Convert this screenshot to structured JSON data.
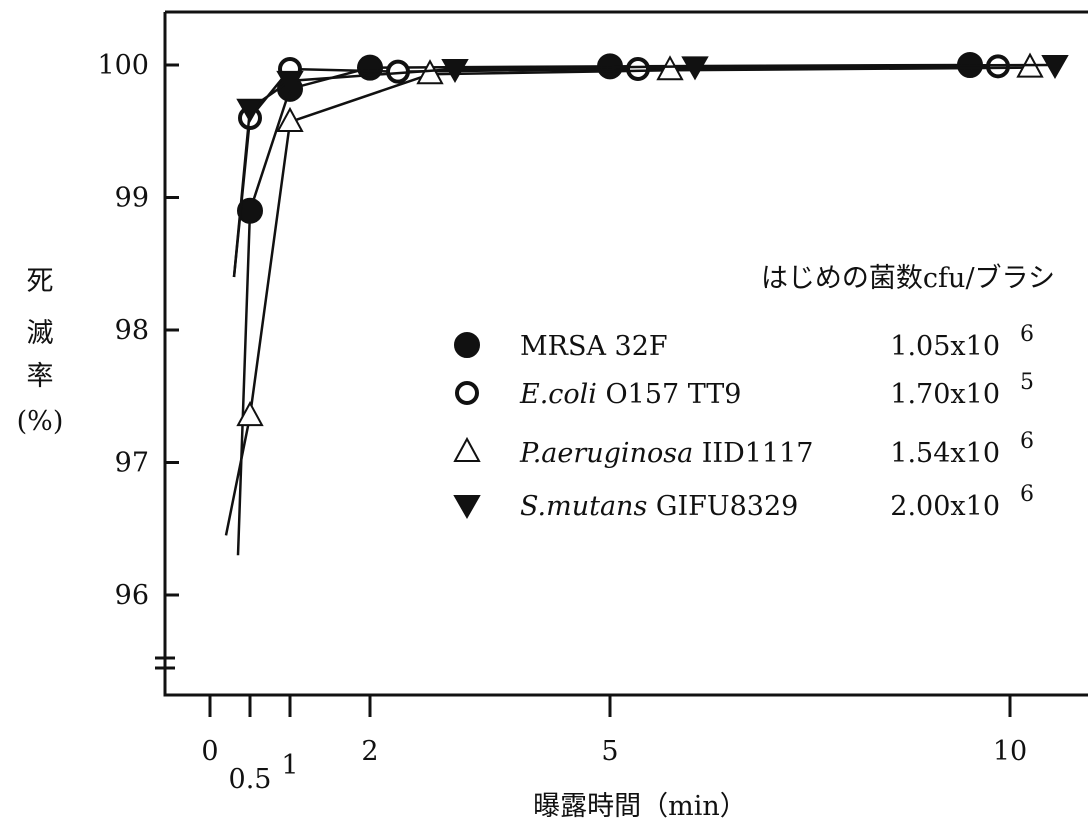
{
  "chart_data": {
    "type": "line",
    "title": "",
    "xlabel": "曝露時間（min）",
    "ylabel": [
      "死",
      "滅",
      "率",
      "(%)"
    ],
    "xlim": [
      -0.1,
      10.5
    ],
    "ylim": [
      95.5,
      100.4
    ],
    "x_ticks": [
      {
        "value": 0,
        "label": "0"
      },
      {
        "value": 0.5,
        "label": "0.5"
      },
      {
        "value": 1,
        "label": "1"
      },
      {
        "value": 2,
        "label": "2"
      },
      {
        "value": 5,
        "label": "5"
      },
      {
        "value": 10,
        "label": "10"
      }
    ],
    "y_ticks": [
      {
        "value": 96,
        "label": "96"
      },
      {
        "value": 97,
        "label": "97"
      },
      {
        "value": 98,
        "label": "98"
      },
      {
        "value": 99,
        "label": "99"
      },
      {
        "value": 100,
        "label": "100"
      }
    ],
    "y_axis_break": true,
    "grid": false,
    "legend_title": "はじめの菌数cfu/ブラシ",
    "legend_position": "right",
    "series": [
      {
        "name_parts": [
          {
            "text": "MRSA 32F",
            "italic": false
          }
        ],
        "count_base": "1.05x10",
        "count_exp": "6",
        "marker": "filled-circle",
        "x": [
          0.5,
          1,
          2,
          5,
          9.5
        ],
        "y": [
          98.9,
          99.82,
          99.98,
          99.99,
          100.0
        ],
        "start": [
          0.35,
          96.3
        ]
      },
      {
        "name_parts": [
          {
            "text": "E.coli",
            "italic": true
          },
          {
            "text": " O157 TT9",
            "italic": false
          }
        ],
        "count_base": "1.70x10",
        "count_exp": "5",
        "marker": "open-circle",
        "x": [
          0.5,
          1,
          2,
          5,
          9.5
        ],
        "y": [
          99.6,
          99.97,
          99.95,
          99.97,
          99.99
        ],
        "start": [
          0.3,
          98.4
        ]
      },
      {
        "name_parts": [
          {
            "text": "P.aeruginosa",
            "italic": true
          },
          {
            "text": " IID1117",
            "italic": false
          }
        ],
        "count_base": "1.54x10",
        "count_exp": "6",
        "marker": "open-triangle-up",
        "x": [
          0.5,
          1,
          2,
          5,
          9.5
        ],
        "y": [
          97.35,
          99.57,
          99.93,
          99.96,
          99.98
        ],
        "start": [
          0.2,
          96.45
        ]
      },
      {
        "name_parts": [
          {
            "text": "S.mutans",
            "italic": true
          },
          {
            "text": " GIFU8329",
            "italic": false
          }
        ],
        "count_base": "2.00x10",
        "count_exp": "6",
        "marker": "filled-triangle-down",
        "x": [
          0.5,
          1,
          2,
          5,
          9.5
        ],
        "y": [
          99.67,
          99.88,
          99.97,
          99.99,
          100.0
        ],
        "start": [
          0.3,
          98.4
        ]
      }
    ]
  }
}
